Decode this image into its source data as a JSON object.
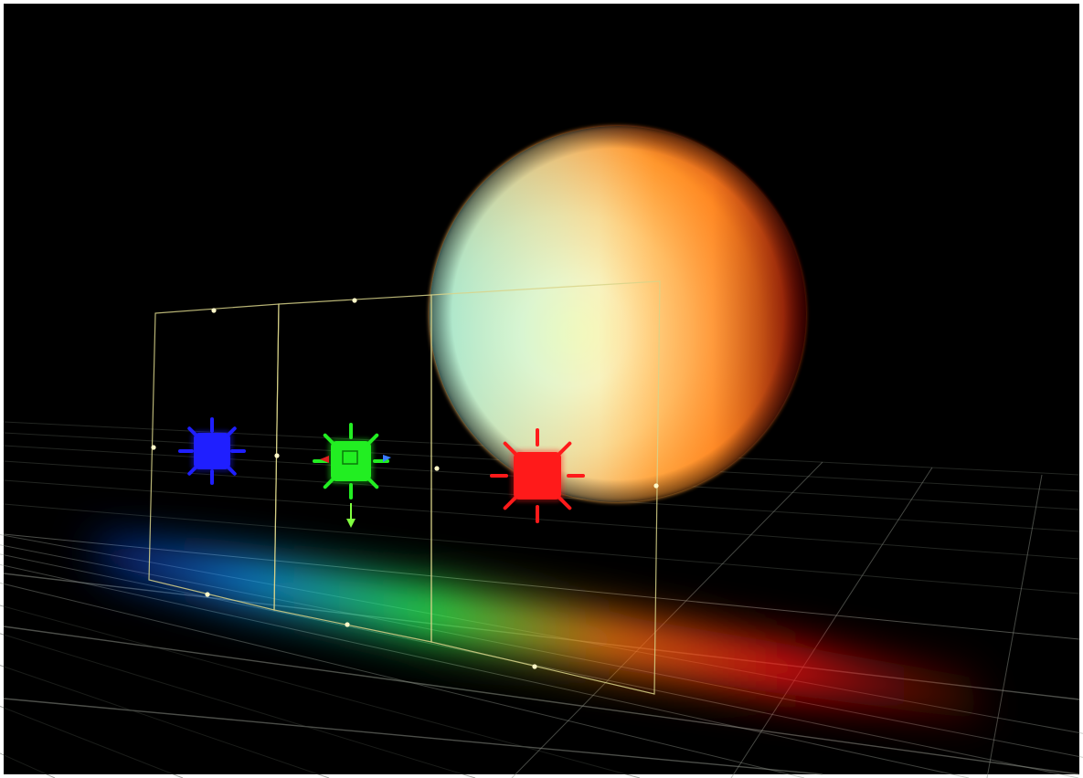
{
  "viewport": {
    "background_color": "#000000",
    "frame_color": "#ffffff",
    "grid_line_color": "#3a3f38",
    "grid_line_near_color": "#8a8f86"
  },
  "sphere": {
    "colors": {
      "cool_highlight": "#d8ffff",
      "cyan": "#5ee8ff",
      "warm_highlight": "#fff7a8",
      "orange": "#ff9a2e",
      "dark_red": "#7a0000"
    }
  },
  "area_light_rig": {
    "frame_color": "#d8d38a",
    "handle_color": "#fff8c8",
    "panel_count": 3,
    "handle_count": 15
  },
  "lights": [
    {
      "name": "blue-light",
      "color": "#1f1fff",
      "gizmo_icon": "sun-icon",
      "selected": false
    },
    {
      "name": "green-light",
      "color": "#22ee22",
      "gizmo_icon": "sun-icon",
      "selected": true,
      "transform_gizmo_colors": {
        "x_axis": "#e02020",
        "y_axis": "#3a7cff",
        "z_axis": "#80ff40"
      }
    },
    {
      "name": "red-light",
      "color": "#ff1a1a",
      "gizmo_icon": "sun-icon",
      "selected": false
    }
  ],
  "floor_light_spill": {
    "colors": [
      "#1540ff",
      "#16a0ff",
      "#2cff55",
      "#ff7a10",
      "#ff1010",
      "#8a1808"
    ]
  }
}
